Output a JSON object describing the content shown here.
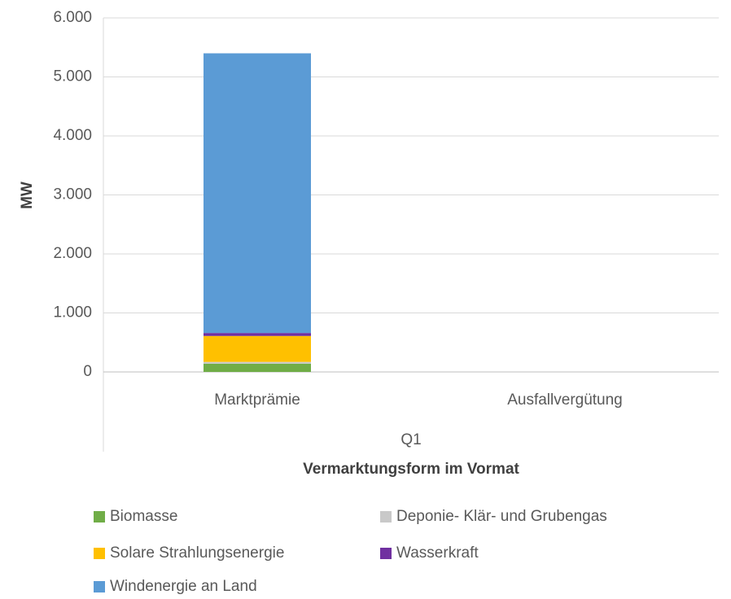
{
  "chart_data": {
    "type": "bar",
    "stacked": true,
    "y_label": "MW",
    "x_label": "Vermarktungsform im Vormat",
    "group": "Q1",
    "categories": [
      "Marktprämie",
      "Ausfallvergütung"
    ],
    "series": [
      {
        "name": "Biomasse",
        "color": "#70ad47",
        "values": [
          140,
          0
        ]
      },
      {
        "name": "Deponie- Klär- und Grubengas",
        "color": "#c9c9c9",
        "values": [
          30,
          0
        ]
      },
      {
        "name": "Solare Strahlungsenergie",
        "color": "#ffc000",
        "values": [
          440,
          0
        ]
      },
      {
        "name": "Wasserkraft",
        "color": "#7030a0",
        "values": [
          50,
          0
        ]
      },
      {
        "name": "Windenergie an Land",
        "color": "#5b9bd5",
        "values": [
          4740,
          0
        ]
      }
    ],
    "ylim": [
      0,
      6000
    ],
    "yticks": [
      0,
      {
        "value": 1000,
        "label": "1.000"
      },
      {
        "value": 2000,
        "label": "2.000"
      },
      {
        "value": 3000,
        "label": "3.000"
      },
      {
        "value": 4000,
        "label": "4.000"
      },
      {
        "value": 5000,
        "label": "5.000"
      },
      {
        "value": 6000,
        "label": "6.000"
      }
    ],
    "grid": true
  }
}
